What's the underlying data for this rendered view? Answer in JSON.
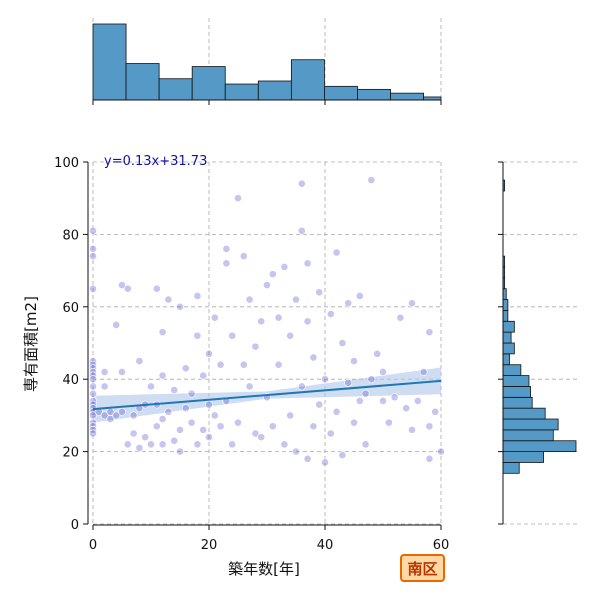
{
  "chart_data": {
    "type": "scatter",
    "xlabel": "築年数[年]",
    "ylabel": "専有面積[m2]",
    "xlim": [
      0,
      60
    ],
    "ylim": [
      0,
      100
    ],
    "xticks": [
      0,
      20,
      40,
      60
    ],
    "yticks": [
      0,
      20,
      40,
      60,
      80,
      100
    ],
    "grid": true,
    "annotation": "y=0.13x+31.73",
    "badge": "南区",
    "colors": {
      "points": "#5a5ad0",
      "regression": "#1f77b4",
      "ci_band": "#aec7e8",
      "histogram": "#5599c6",
      "badge_border": "#ee6600",
      "badge_fill": "#ffd9a3"
    },
    "regression": {
      "slope": 0.13,
      "intercept": 31.73
    },
    "sample_points": [
      {
        "x": 0,
        "y": 81
      },
      {
        "x": 0,
        "y": 76
      },
      {
        "x": 0,
        "y": 74
      },
      {
        "x": 0,
        "y": 65
      },
      {
        "x": 0,
        "y": 45
      },
      {
        "x": 0,
        "y": 44
      },
      {
        "x": 0,
        "y": 43
      },
      {
        "x": 0,
        "y": 42
      },
      {
        "x": 0,
        "y": 41
      },
      {
        "x": 0,
        "y": 40
      },
      {
        "x": 0,
        "y": 38
      },
      {
        "x": 0,
        "y": 36
      },
      {
        "x": 0,
        "y": 34
      },
      {
        "x": 0,
        "y": 33
      },
      {
        "x": 0,
        "y": 32
      },
      {
        "x": 0,
        "y": 31
      },
      {
        "x": 0,
        "y": 30
      },
      {
        "x": 0,
        "y": 28
      },
      {
        "x": 0,
        "y": 27
      },
      {
        "x": 0,
        "y": 26
      },
      {
        "x": 0,
        "y": 25
      },
      {
        "x": 1,
        "y": 31
      },
      {
        "x": 2,
        "y": 30
      },
      {
        "x": 2,
        "y": 38
      },
      {
        "x": 2,
        "y": 42
      },
      {
        "x": 3,
        "y": 31
      },
      {
        "x": 3,
        "y": 29
      },
      {
        "x": 4,
        "y": 30
      },
      {
        "x": 4,
        "y": 55
      },
      {
        "x": 5,
        "y": 31
      },
      {
        "x": 5,
        "y": 42
      },
      {
        "x": 5,
        "y": 66
      },
      {
        "x": 6,
        "y": 65
      },
      {
        "x": 6,
        "y": 22
      },
      {
        "x": 7,
        "y": 30
      },
      {
        "x": 7,
        "y": 25
      },
      {
        "x": 8,
        "y": 32
      },
      {
        "x": 8,
        "y": 45
      },
      {
        "x": 8,
        "y": 21
      },
      {
        "x": 9,
        "y": 33
      },
      {
        "x": 9,
        "y": 24
      },
      {
        "x": 10,
        "y": 38
      },
      {
        "x": 10,
        "y": 22
      },
      {
        "x": 11,
        "y": 27
      },
      {
        "x": 11,
        "y": 33
      },
      {
        "x": 11,
        "y": 65
      },
      {
        "x": 12,
        "y": 22
      },
      {
        "x": 12,
        "y": 29
      },
      {
        "x": 12,
        "y": 41
      },
      {
        "x": 12,
        "y": 53
      },
      {
        "x": 13,
        "y": 62
      },
      {
        "x": 13,
        "y": 31
      },
      {
        "x": 14,
        "y": 23
      },
      {
        "x": 14,
        "y": 37
      },
      {
        "x": 15,
        "y": 26
      },
      {
        "x": 15,
        "y": 20
      },
      {
        "x": 15,
        "y": 60
      },
      {
        "x": 16,
        "y": 32
      },
      {
        "x": 16,
        "y": 43
      },
      {
        "x": 17,
        "y": 36
      },
      {
        "x": 17,
        "y": 28
      },
      {
        "x": 18,
        "y": 22
      },
      {
        "x": 18,
        "y": 52
      },
      {
        "x": 18,
        "y": 63
      },
      {
        "x": 19,
        "y": 41
      },
      {
        "x": 19,
        "y": 26
      },
      {
        "x": 20,
        "y": 33
      },
      {
        "x": 20,
        "y": 47
      },
      {
        "x": 20,
        "y": 24
      },
      {
        "x": 21,
        "y": 30
      },
      {
        "x": 21,
        "y": 57
      },
      {
        "x": 22,
        "y": 27
      },
      {
        "x": 22,
        "y": 44
      },
      {
        "x": 23,
        "y": 76
      },
      {
        "x": 23,
        "y": 72
      },
      {
        "x": 23,
        "y": 34
      },
      {
        "x": 24,
        "y": 22
      },
      {
        "x": 24,
        "y": 52
      },
      {
        "x": 25,
        "y": 90
      },
      {
        "x": 25,
        "y": 28
      },
      {
        "x": 26,
        "y": 74
      },
      {
        "x": 26,
        "y": 44
      },
      {
        "x": 27,
        "y": 38
      },
      {
        "x": 27,
        "y": 62
      },
      {
        "x": 28,
        "y": 25
      },
      {
        "x": 28,
        "y": 49
      },
      {
        "x": 29,
        "y": 24
      },
      {
        "x": 29,
        "y": 56
      },
      {
        "x": 30,
        "y": 35
      },
      {
        "x": 30,
        "y": 66
      },
      {
        "x": 31,
        "y": 69
      },
      {
        "x": 31,
        "y": 27
      },
      {
        "x": 32,
        "y": 57
      },
      {
        "x": 32,
        "y": 44
      },
      {
        "x": 33,
        "y": 22
      },
      {
        "x": 33,
        "y": 71
      },
      {
        "x": 34,
        "y": 30
      },
      {
        "x": 34,
        "y": 52
      },
      {
        "x": 35,
        "y": 62
      },
      {
        "x": 35,
        "y": 20
      },
      {
        "x": 36,
        "y": 94
      },
      {
        "x": 36,
        "y": 38
      },
      {
        "x": 36,
        "y": 81
      },
      {
        "x": 37,
        "y": 72
      },
      {
        "x": 37,
        "y": 56
      },
      {
        "x": 37,
        "y": 18
      },
      {
        "x": 38,
        "y": 27
      },
      {
        "x": 38,
        "y": 46
      },
      {
        "x": 39,
        "y": 33
      },
      {
        "x": 39,
        "y": 64
      },
      {
        "x": 40,
        "y": 17
      },
      {
        "x": 40,
        "y": 40
      },
      {
        "x": 41,
        "y": 25
      },
      {
        "x": 41,
        "y": 58
      },
      {
        "x": 42,
        "y": 75
      },
      {
        "x": 42,
        "y": 31
      },
      {
        "x": 43,
        "y": 50
      },
      {
        "x": 43,
        "y": 19
      },
      {
        "x": 44,
        "y": 61
      },
      {
        "x": 44,
        "y": 39
      },
      {
        "x": 45,
        "y": 28
      },
      {
        "x": 45,
        "y": 45
      },
      {
        "x": 46,
        "y": 63
      },
      {
        "x": 46,
        "y": 34
      },
      {
        "x": 47,
        "y": 36
      },
      {
        "x": 47,
        "y": 22
      },
      {
        "x": 48,
        "y": 95
      },
      {
        "x": 48,
        "y": 40
      },
      {
        "x": 49,
        "y": 47
      },
      {
        "x": 50,
        "y": 34
      },
      {
        "x": 50,
        "y": 42
      },
      {
        "x": 51,
        "y": 28
      },
      {
        "x": 52,
        "y": 35
      },
      {
        "x": 53,
        "y": 57
      },
      {
        "x": 54,
        "y": 32
      },
      {
        "x": 55,
        "y": 61
      },
      {
        "x": 55,
        "y": 26
      },
      {
        "x": 56,
        "y": 34
      },
      {
        "x": 57,
        "y": 42
      },
      {
        "x": 58,
        "y": 18
      },
      {
        "x": 58,
        "y": 27
      },
      {
        "x": 58,
        "y": 53
      },
      {
        "x": 59,
        "y": 31
      },
      {
        "x": 60,
        "y": 20
      }
    ],
    "top_histogram": {
      "bin_edges": [
        0,
        5.7,
        11.4,
        17.1,
        22.8,
        28.5,
        34.2,
        39.9,
        45.6,
        51.3,
        57.0,
        60.0
      ],
      "counts": [
        100,
        48,
        28,
        44,
        21,
        25,
        53,
        18,
        14,
        9,
        4
      ]
    },
    "right_histogram": {
      "bin_edges": [
        14,
        17,
        20,
        23,
        26,
        29,
        32,
        35,
        38,
        41,
        44,
        47,
        50,
        53,
        56,
        59,
        62,
        65,
        68,
        71,
        74,
        77,
        80,
        83,
        86,
        89,
        92,
        95
      ],
      "counts": [
        10,
        25,
        45,
        31,
        34,
        26,
        18,
        17,
        16,
        11,
        4,
        7,
        5,
        7,
        3,
        3,
        2,
        1,
        1,
        1,
        0,
        0,
        0,
        0,
        0,
        0,
        1
      ]
    }
  }
}
